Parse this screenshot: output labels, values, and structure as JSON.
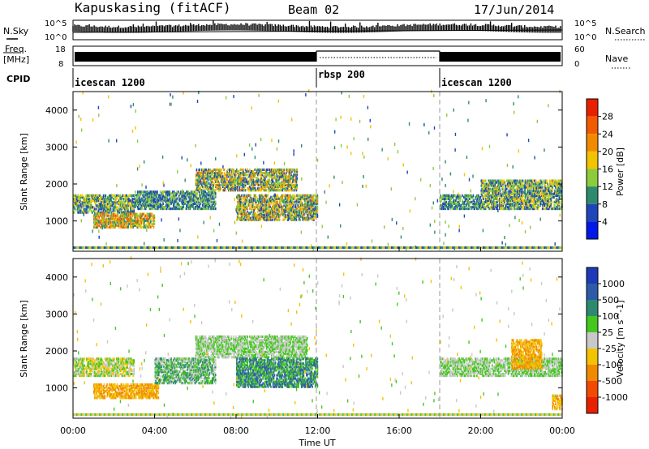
{
  "header": {
    "station": "Kapuskasing (fitACF)",
    "beam": "Beam 02",
    "date": "17/Jun/2014"
  },
  "top_panels": {
    "nsky": {
      "label": "N.Sky",
      "ytick_top": "10^5",
      "ytick_bottom": "10^0",
      "right_label": "N.Search",
      "right_tick_top": "10^5",
      "right_tick_bottom": "10^0"
    },
    "freq": {
      "label_top": "Freq.",
      "label_unit": "[MHz]",
      "ytick_top": "18",
      "ytick_bottom": "8",
      "right_label": "Nave",
      "right_tick_top": "60",
      "right_tick_bottom": "0"
    },
    "cpid": {
      "label": "CPID",
      "segments": [
        {
          "label": "icescan 1200",
          "start_hour": 0,
          "end_hour": 12
        },
        {
          "label": "rbsp 200",
          "start_hour": 12,
          "end_hour": 18
        },
        {
          "label": "icescan 1200",
          "start_hour": 18,
          "end_hour": 24
        }
      ]
    }
  },
  "axes": {
    "xlabel": "Time UT",
    "xticks": [
      "00:00",
      "04:00",
      "08:00",
      "12:00",
      "16:00",
      "20:00",
      "00:00"
    ],
    "ylabel": "Slant Range [km]",
    "yticks": [
      "1000",
      "2000",
      "3000",
      "4000"
    ]
  },
  "colorbars": {
    "power": {
      "label": "Power [dB]",
      "ticks": [
        "4",
        "8",
        "12",
        "16",
        "20",
        "24",
        "28"
      ],
      "colors": [
        "#0018e8",
        "#1e46b8",
        "#2e8a6e",
        "#8ccc3c",
        "#f2c300",
        "#f28a00",
        "#f25a00",
        "#e82000"
      ]
    },
    "velocity": {
      "label": "Velocity [m s^-1]",
      "ticks": [
        "1000",
        "500",
        "100",
        "25",
        "-25",
        "-100",
        "-500",
        "-1000"
      ],
      "colors": [
        "#1e3ab8",
        "#2e5aa8",
        "#2e8a6e",
        "#44c81e",
        "#c8c8c8",
        "#f2c300",
        "#f28a00",
        "#f24a00",
        "#e82000"
      ]
    }
  },
  "chart_data": [
    {
      "type": "heatmap",
      "title": "",
      "quantity": "Power",
      "x_range_hours": [
        0,
        24
      ],
      "y_range_km": [
        180,
        4500
      ],
      "mode_changes_hours": [
        12,
        18
      ],
      "regions": [
        {
          "t0": 0.0,
          "t1": 3.0,
          "r0": 1200,
          "r1": 1700,
          "level": "mid",
          "values_db": [
            4,
            8,
            12,
            16
          ]
        },
        {
          "t0": 1.0,
          "t1": 4.0,
          "r0": 800,
          "r1": 1200,
          "level": "high",
          "values_db": [
            8,
            12,
            16,
            20,
            24
          ]
        },
        {
          "t0": 3.0,
          "t1": 7.0,
          "r0": 1300,
          "r1": 1800,
          "level": "low",
          "values_db": [
            4,
            8,
            12
          ]
        },
        {
          "t0": 6.0,
          "t1": 11.0,
          "r0": 1800,
          "r1": 2400,
          "level": "mid",
          "values_db": [
            4,
            8,
            12,
            16,
            20
          ]
        },
        {
          "t0": 8.0,
          "t1": 12.0,
          "r0": 1000,
          "r1": 1700,
          "level": "mid",
          "values_db": [
            4,
            8,
            12,
            16,
            20
          ]
        },
        {
          "t0": 18.0,
          "t1": 20.0,
          "r0": 1300,
          "r1": 1700,
          "level": "low",
          "values_db": [
            4,
            8,
            12
          ]
        },
        {
          "t0": 20.0,
          "t1": 24.0,
          "r0": 1300,
          "r1": 2100,
          "level": "mid",
          "values_db": [
            4,
            8,
            12,
            16
          ]
        }
      ]
    },
    {
      "type": "heatmap",
      "title": "",
      "quantity": "Velocity",
      "x_range_hours": [
        0,
        24
      ],
      "y_range_km": [
        180,
        4500
      ],
      "mode_changes_hours": [
        12,
        18
      ],
      "regions": [
        {
          "t0": 0.0,
          "t1": 3.0,
          "r0": 1300,
          "r1": 1800,
          "values_ms": [
            -100,
            -25,
            25
          ]
        },
        {
          "t0": 1.0,
          "t1": 4.2,
          "r0": 700,
          "r1": 1100,
          "values_ms": [
            -500,
            -100
          ]
        },
        {
          "t0": 4.0,
          "t1": 7.0,
          "r0": 1100,
          "r1": 1800,
          "values_ms": [
            -25,
            25,
            100
          ]
        },
        {
          "t0": 6.0,
          "t1": 11.5,
          "r0": 1800,
          "r1": 2400,
          "values_ms": [
            -25,
            25
          ]
        },
        {
          "t0": 8.0,
          "t1": 12.0,
          "r0": 1000,
          "r1": 1800,
          "values_ms": [
            25,
            100,
            500
          ]
        },
        {
          "t0": 18.0,
          "t1": 24.0,
          "r0": 1300,
          "r1": 1800,
          "values_ms": [
            -25,
            25
          ]
        },
        {
          "t0": 21.5,
          "t1": 23.0,
          "r0": 1500,
          "r1": 2300,
          "values_ms": [
            -500,
            -100
          ]
        },
        {
          "t0": 23.5,
          "t1": 24.0,
          "r0": 400,
          "r1": 800,
          "values_ms": [
            -500,
            -100
          ]
        }
      ]
    }
  ]
}
